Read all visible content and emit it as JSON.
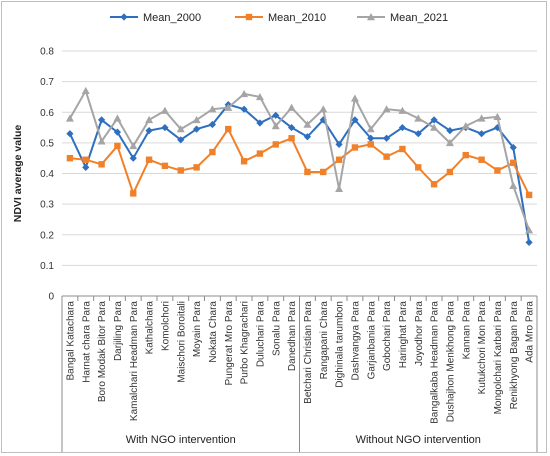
{
  "chart_data": {
    "type": "line",
    "title": "",
    "xlabel": "",
    "ylabel": "NDVI average value",
    "ylim": [
      0,
      0.8
    ],
    "yticks": [
      "0",
      "0.1",
      "0.2",
      "0.3",
      "0.4",
      "0.5",
      "0.6",
      "0.7",
      "0.8"
    ],
    "grid": "horizontal",
    "legend_position": "top",
    "categories": [
      "Bangal Katachara",
      "Harnat chara  Para",
      "Boro Modak Bitor Para",
      "Darjiling Para",
      "Kamalchari Headman Para",
      "Kathalchara",
      "Komolchori",
      "Maischori Boroitali",
      "Moyain Para",
      "Nokata Chara",
      "Pungerat Mro Para",
      "Purbo Khagrachari",
      "Duluchari Para",
      "Sonalu Para",
      "Danedhan Para",
      "Betchari Christian Para",
      "Rangapani Chara",
      "Dighinala tarumbon",
      "Dashvangya Para",
      "Garjanbania Para",
      "Gobochari Para",
      "Haringhat Para",
      "Joyodhor Para",
      "Bangalkaba Headman Para",
      "Dushajhon Menkhong Para",
      "Kannan Para",
      "Kutukchori Mon Para",
      "Mongolchari Karbari Para",
      "Renikhyong Bagan Para",
      "Ada Mro Para"
    ],
    "groups": [
      {
        "label": "With NGO intervention",
        "count": 15
      },
      {
        "label": "Without NGO intervention",
        "count": 15
      }
    ],
    "series": [
      {
        "name": "Mean_2000",
        "color": "#2e6fbf",
        "marker": "diamond",
        "values": [
          0.53,
          0.42,
          0.575,
          0.535,
          0.45,
          0.54,
          0.55,
          0.51,
          0.545,
          0.56,
          0.625,
          0.61,
          0.565,
          0.59,
          0.55,
          0.52,
          0.575,
          0.495,
          0.575,
          0.515,
          0.515,
          0.55,
          0.53,
          0.575,
          0.54,
          0.55,
          0.53,
          0.55,
          0.485,
          0.175
        ]
      },
      {
        "name": "Mean_2010",
        "color": "#f0812a",
        "marker": "square",
        "values": [
          0.45,
          0.445,
          0.43,
          0.49,
          0.335,
          0.445,
          0.425,
          0.41,
          0.42,
          0.47,
          0.545,
          0.44,
          0.465,
          0.495,
          0.515,
          0.405,
          0.405,
          0.445,
          0.485,
          0.495,
          0.455,
          0.48,
          0.42,
          0.365,
          0.405,
          0.46,
          0.445,
          0.41,
          0.435,
          0.33
        ]
      },
      {
        "name": "Mean_2021",
        "color": "#a5a5a5",
        "marker": "triangle",
        "values": [
          0.58,
          0.67,
          0.505,
          0.58,
          0.49,
          0.575,
          0.605,
          0.545,
          0.575,
          0.61,
          0.615,
          0.66,
          0.65,
          0.555,
          0.615,
          0.56,
          0.61,
          0.35,
          0.645,
          0.545,
          0.61,
          0.605,
          0.58,
          0.55,
          0.5,
          0.555,
          0.58,
          0.585,
          0.36,
          0.215
        ]
      }
    ]
  }
}
